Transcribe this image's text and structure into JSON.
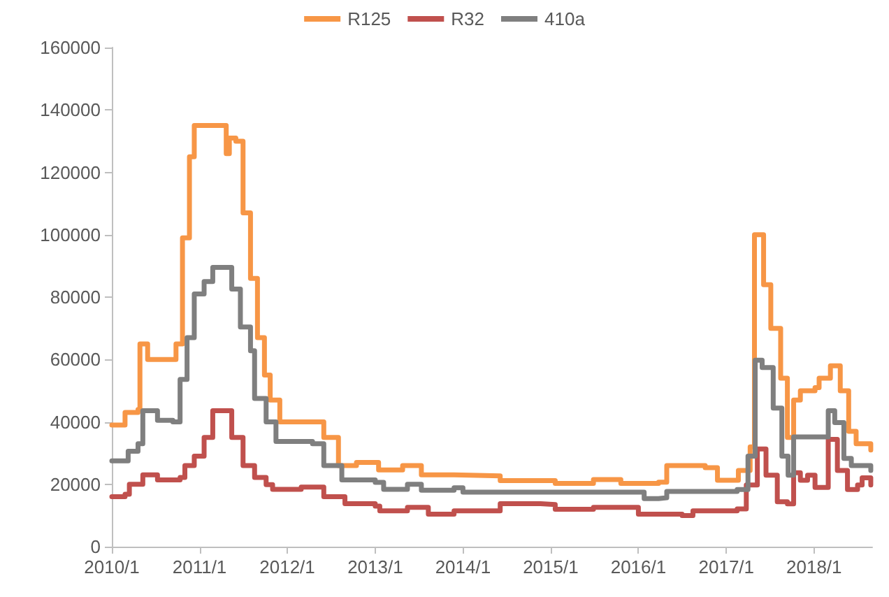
{
  "chart_data": {
    "type": "step",
    "xlim": [
      "2010-01-01",
      "2018-08-31"
    ],
    "xticks": [
      {
        "value": "2010-01-01",
        "label": "2010/1"
      },
      {
        "value": "2011-01-01",
        "label": "2011/1"
      },
      {
        "value": "2012-01-01",
        "label": "2012/1"
      },
      {
        "value": "2013-01-01",
        "label": "2013/1"
      },
      {
        "value": "2014-01-01",
        "label": "2014/1"
      },
      {
        "value": "2015-01-01",
        "label": "2015/1"
      },
      {
        "value": "2016-01-01",
        "label": "2016/1"
      },
      {
        "value": "2017-01-01",
        "label": "2017/1"
      },
      {
        "value": "2018-01-01",
        "label": "2018/1"
      }
    ],
    "ylim": [
      0,
      160000
    ],
    "yticks": [
      0,
      20000,
      40000,
      60000,
      80000,
      100000,
      120000,
      140000,
      160000
    ],
    "grid": false,
    "legend": "top",
    "marker": "none",
    "line_style": "solid",
    "series": [
      {
        "name": "R125",
        "color": "#f79646",
        "x": [
          "2010-01-01",
          "2010-02-25",
          "2010-04-20",
          "2010-04-28",
          "2010-05-30",
          "2010-09-12",
          "2010-09-25",
          "2010-10-22",
          "2010-11-20",
          "2010-12-10",
          "2011-04-05",
          "2011-04-22",
          "2011-05-05",
          "2011-06-01",
          "2011-07-01",
          "2011-08-01",
          "2011-08-30",
          "2011-09-28",
          "2011-10-22",
          "2011-12-01",
          "2012-04-05",
          "2012-06-01",
          "2012-08-01",
          "2012-10-15",
          "2013-01-15",
          "2013-04-25",
          "2013-07-12",
          "2013-11-25",
          "2014-06-05",
          "2015-01-20",
          "2015-06-28",
          "2015-10-20",
          "2016-03-25",
          "2016-04-28",
          "2016-10-05",
          "2016-11-25",
          "2017-02-20",
          "2017-04-10",
          "2017-04-28",
          "2017-05-18",
          "2017-06-05",
          "2017-07-05",
          "2017-08-15",
          "2017-09-12",
          "2017-10-08",
          "2017-11-05",
          "2018-01-05",
          "2018-01-22",
          "2018-03-10",
          "2018-04-20",
          "2018-05-25",
          "2018-06-25",
          "2018-08-25"
        ],
        "values": [
          39000,
          43000,
          44000,
          65000,
          60000,
          60000,
          65000,
          99000,
          125000,
          135000,
          135000,
          126000,
          131000,
          130000,
          107000,
          86000,
          67000,
          55000,
          47000,
          40000,
          40000,
          35000,
          26000,
          27000,
          24600,
          26000,
          23000,
          22700,
          21200,
          20300,
          21500,
          20300,
          20700,
          26000,
          25300,
          21300,
          24400,
          32000,
          100000,
          100000,
          84000,
          70000,
          54000,
          35000,
          47000,
          50000,
          51000,
          54000,
          58000,
          50000,
          37000,
          33000,
          31000
        ]
      },
      {
        "name": "R32",
        "color": "#c0504d",
        "x": [
          "2010-01-01",
          "2010-02-25",
          "2010-03-15",
          "2010-05-10",
          "2010-07-10",
          "2010-10-12",
          "2010-11-01",
          "2010-12-10",
          "2011-01-20",
          "2011-02-25",
          "2011-04-05",
          "2011-05-15",
          "2011-07-01",
          "2011-08-18",
          "2011-10-05",
          "2011-11-01",
          "2012-02-28",
          "2012-06-01",
          "2012-08-28",
          "2013-01-01",
          "2013-01-20",
          "2013-05-15",
          "2013-08-10",
          "2013-11-25",
          "2014-06-05",
          "2014-11-20",
          "2015-01-20",
          "2015-06-28",
          "2016-01-01",
          "2016-07-01",
          "2016-08-15",
          "2017-02-15",
          "2017-03-25",
          "2017-05-10",
          "2017-06-15",
          "2017-08-01",
          "2017-09-12",
          "2017-10-08",
          "2017-11-05",
          "2017-12-05",
          "2018-01-05",
          "2018-03-01",
          "2018-04-08",
          "2018-05-20",
          "2018-07-01",
          "2018-07-20",
          "2018-08-25"
        ],
        "values": [
          16000,
          16800,
          20000,
          23000,
          21400,
          22200,
          26000,
          29000,
          35000,
          43600,
          43600,
          35000,
          26000,
          22200,
          19900,
          18400,
          19100,
          16000,
          13800,
          13000,
          11500,
          12600,
          10400,
          11500,
          13800,
          13500,
          12000,
          12600,
          10400,
          10000,
          11500,
          12100,
          19800,
          31300,
          22900,
          14400,
          13700,
          23700,
          21300,
          22900,
          19000,
          34400,
          24400,
          18300,
          19800,
          22100,
          19800
        ]
      },
      {
        "name": "410a",
        "color": "#7f7f7f",
        "x": [
          "2010-01-01",
          "2010-03-10",
          "2010-04-20",
          "2010-05-10",
          "2010-07-10",
          "2010-09-12",
          "2010-10-12",
          "2010-11-10",
          "2010-12-10",
          "2011-01-20",
          "2011-02-25",
          "2011-04-05",
          "2011-05-15",
          "2011-06-20",
          "2011-08-01",
          "2011-08-18",
          "2011-10-05",
          "2011-11-15",
          "2012-04-15",
          "2012-06-01",
          "2012-08-15",
          "2013-01-01",
          "2013-02-05",
          "2013-05-15",
          "2013-07-12",
          "2013-11-25",
          "2014-01-01",
          "2015-12-15",
          "2016-01-25",
          "2016-03-25",
          "2016-04-28",
          "2017-02-15",
          "2017-04-01",
          "2017-05-01",
          "2017-05-30",
          "2017-07-15",
          "2017-08-20",
          "2017-09-15",
          "2017-10-08",
          "2018-01-05",
          "2018-03-01",
          "2018-03-28",
          "2018-05-05",
          "2018-06-05",
          "2018-08-25"
        ],
        "values": [
          27500,
          30600,
          33000,
          43600,
          40500,
          40000,
          53600,
          67000,
          81000,
          85000,
          89500,
          89500,
          82600,
          70400,
          62800,
          47500,
          40000,
          33700,
          33000,
          26000,
          21400,
          20600,
          18400,
          20000,
          18100,
          18900,
          17500,
          17500,
          15400,
          15700,
          17700,
          18300,
          29000,
          59800,
          57400,
          44400,
          29000,
          22900,
          35200,
          35200,
          43600,
          39800,
          28300,
          26000,
          24400
        ]
      }
    ]
  }
}
